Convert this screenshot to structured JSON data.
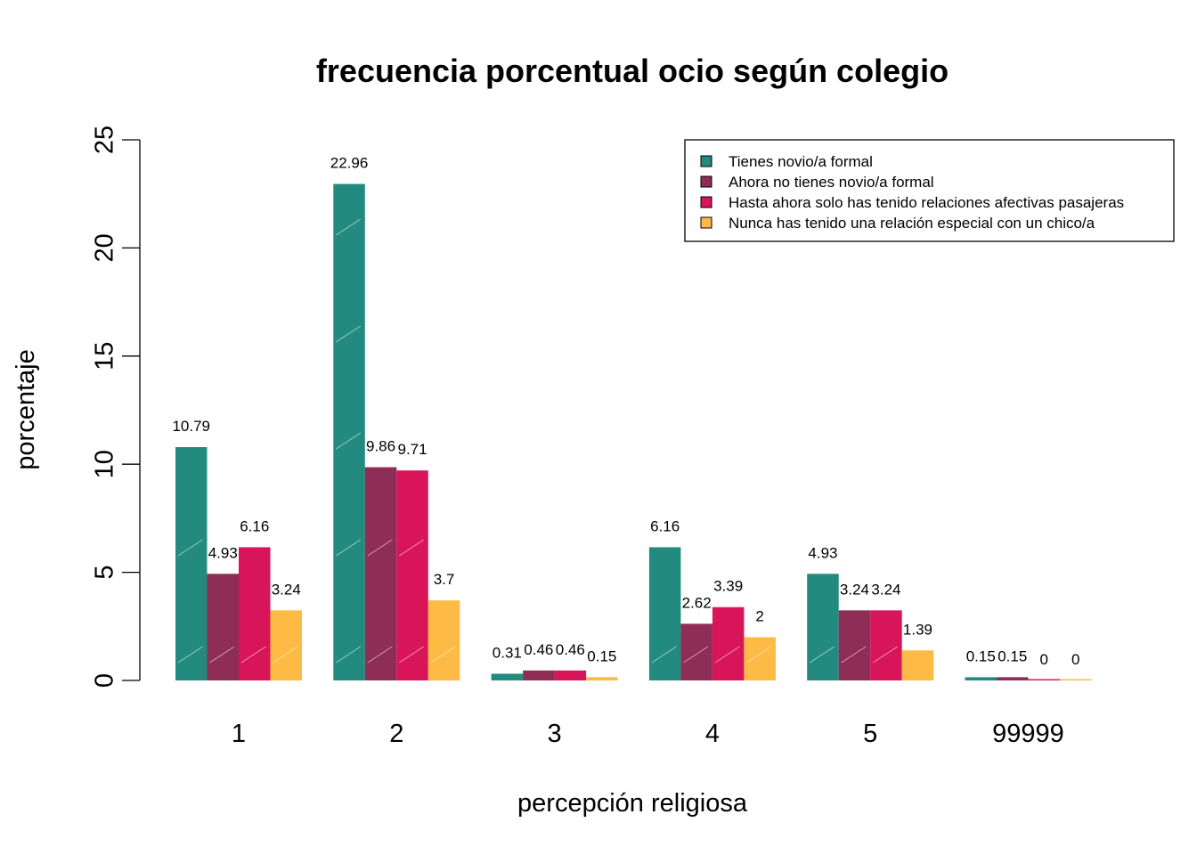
{
  "chart_data": {
    "type": "bar",
    "title": "frecuencia porcentual ocio según colegio",
    "xlabel": "percepción religiosa",
    "ylabel": "porcentaje",
    "ylim": [
      0,
      25
    ],
    "yticks": [
      0,
      5,
      10,
      15,
      20,
      25
    ],
    "categories": [
      "1",
      "2",
      "3",
      "4",
      "5",
      "99999"
    ],
    "legend_position": "top-right",
    "series": [
      {
        "name": "Tienes novio/a formal",
        "color": "#238A7F",
        "values": [
          10.79,
          22.96,
          0.31,
          6.16,
          4.93,
          0.15
        ],
        "labels": [
          "10.79",
          "22.96",
          "0.31",
          "6.16",
          "4.93",
          "0.15"
        ]
      },
      {
        "name": "Ahora no tienes novio/a formal",
        "color": "#8E2D55",
        "values": [
          4.93,
          9.86,
          0.46,
          2.62,
          3.24,
          0.15
        ],
        "labels": [
          "4.93",
          "9.86",
          "0.46",
          "2.62",
          "3.24",
          "0.15"
        ]
      },
      {
        "name": "Hasta ahora solo has tenido relaciones afectivas pasajeras",
        "color": "#D9155A",
        "values": [
          6.16,
          9.71,
          0.46,
          3.39,
          3.24,
          0
        ],
        "labels": [
          "6.16",
          "9.71",
          "0.46",
          "3.39",
          "3.24",
          "0"
        ]
      },
      {
        "name": "Nunca has tenido una relación especial con un chico/a",
        "color": "#FDBA44",
        "values": [
          3.24,
          3.7,
          0.15,
          2,
          1.39,
          0
        ],
        "labels": [
          "3.24",
          "3.7",
          "0.15",
          "2",
          "1.39",
          "0"
        ]
      }
    ]
  }
}
